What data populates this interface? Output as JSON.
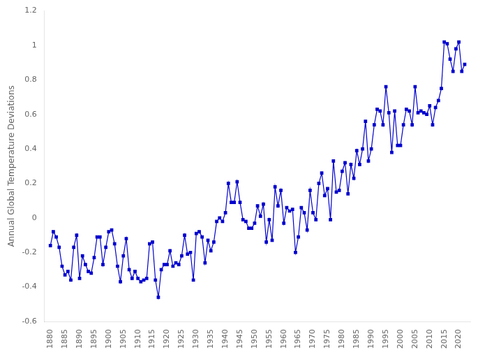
{
  "chart_data": {
    "type": "line",
    "ylabel": "Annual Global Temperature Deviations",
    "x": [
      1880,
      1881,
      1882,
      1883,
      1884,
      1885,
      1886,
      1887,
      1888,
      1889,
      1890,
      1891,
      1892,
      1893,
      1894,
      1895,
      1896,
      1897,
      1898,
      1899,
      1900,
      1901,
      1902,
      1903,
      1904,
      1905,
      1906,
      1907,
      1908,
      1909,
      1910,
      1911,
      1912,
      1913,
      1914,
      1915,
      1916,
      1917,
      1918,
      1919,
      1920,
      1921,
      1922,
      1923,
      1924,
      1925,
      1926,
      1927,
      1928,
      1929,
      1930,
      1931,
      1932,
      1933,
      1934,
      1935,
      1936,
      1937,
      1938,
      1939,
      1940,
      1941,
      1942,
      1943,
      1944,
      1945,
      1946,
      1947,
      1948,
      1949,
      1950,
      1951,
      1952,
      1953,
      1954,
      1955,
      1956,
      1957,
      1958,
      1959,
      1960,
      1961,
      1962,
      1963,
      1964,
      1965,
      1966,
      1967,
      1968,
      1969,
      1970,
      1971,
      1972,
      1973,
      1974,
      1975,
      1976,
      1977,
      1978,
      1979,
      1980,
      1981,
      1982,
      1983,
      1984,
      1985,
      1986,
      1987,
      1988,
      1989,
      1990,
      1991,
      1992,
      1993,
      1994,
      1995,
      1996,
      1997,
      1998,
      1999,
      2000,
      2001,
      2002,
      2003,
      2004,
      2005,
      2006,
      2007,
      2008,
      2009,
      2010,
      2011,
      2012,
      2013,
      2014,
      2015,
      2016,
      2017,
      2018,
      2019,
      2020,
      2021,
      2022
    ],
    "values": [
      -0.16,
      -0.08,
      -0.11,
      -0.17,
      -0.28,
      -0.33,
      -0.31,
      -0.36,
      -0.17,
      -0.1,
      -0.35,
      -0.22,
      -0.27,
      -0.31,
      -0.32,
      -0.23,
      -0.11,
      -0.11,
      -0.27,
      -0.17,
      -0.08,
      -0.07,
      -0.15,
      -0.28,
      -0.37,
      -0.22,
      -0.12,
      -0.3,
      -0.35,
      -0.31,
      -0.35,
      -0.37,
      -0.36,
      -0.35,
      -0.15,
      -0.14,
      -0.36,
      -0.46,
      -0.3,
      -0.27,
      -0.27,
      -0.19,
      -0.28,
      -0.26,
      -0.27,
      -0.22,
      -0.1,
      -0.21,
      -0.2,
      -0.36,
      -0.09,
      -0.08,
      -0.11,
      -0.26,
      -0.13,
      -0.19,
      -0.14,
      -0.02,
      -0.0,
      -0.02,
      0.03,
      0.2,
      0.09,
      0.09,
      0.21,
      0.09,
      -0.01,
      -0.02,
      -0.06,
      -0.06,
      -0.03,
      0.07,
      0.01,
      0.08,
      -0.14,
      -0.01,
      -0.13,
      0.18,
      0.07,
      0.16,
      -0.03,
      0.06,
      0.04,
      0.05,
      -0.2,
      -0.11,
      0.06,
      0.03,
      -0.07,
      0.16,
      0.03,
      -0.01,
      0.2,
      0.26,
      0.13,
      0.17,
      -0.01,
      0.33,
      0.15,
      0.16,
      0.27,
      0.32,
      0.14,
      0.31,
      0.23,
      0.39,
      0.31,
      0.4,
      0.56,
      0.33,
      0.4,
      0.54,
      0.63,
      0.62,
      0.54,
      0.76,
      0.61,
      0.38,
      0.62,
      0.42,
      0.42,
      0.54,
      0.63,
      0.62,
      0.54,
      0.76,
      0.61,
      0.62,
      0.61,
      0.6,
      0.65,
      0.54,
      0.64,
      0.68,
      0.75,
      1.02,
      1.01,
      0.92,
      0.85,
      0.98,
      1.02,
      0.85,
      0.89
    ],
    "color": "#0000CD",
    "marker": "square",
    "line_style": "solid",
    "xlim": [
      1878,
      2024
    ],
    "xticks": [
      1880,
      1885,
      1890,
      1895,
      1900,
      1905,
      1910,
      1915,
      1920,
      1925,
      1930,
      1935,
      1940,
      1945,
      1950,
      1955,
      1960,
      1965,
      1970,
      1975,
      1980,
      1985,
      1990,
      1995,
      2000,
      2005,
      2010,
      2015,
      2020
    ],
    "ylim": [
      -0.6,
      1.2
    ],
    "yticks": [
      -0.6,
      -0.4,
      -0.2,
      0,
      0.2,
      0.4,
      0.6,
      0.8,
      1,
      1.2
    ],
    "grid": false
  }
}
